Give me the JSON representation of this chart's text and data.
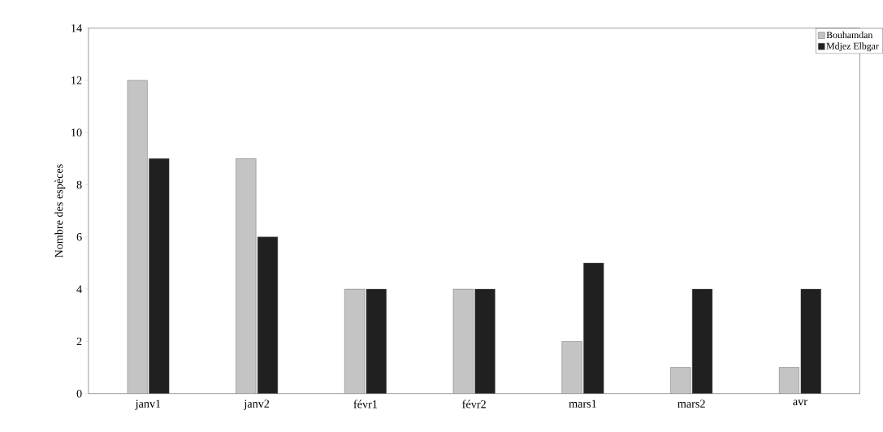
{
  "chart_data": {
    "type": "bar",
    "ylabel": "Nombre des espèces",
    "categories": [
      "janv1",
      "janv2",
      "févr1",
      "févr2",
      "mars1",
      "mars2",
      "avr"
    ],
    "series": [
      {
        "name": "Bouhamdan",
        "color": "#c4c4c4",
        "values": [
          12,
          9,
          4,
          4,
          2,
          1,
          1
        ]
      },
      {
        "name": "Mdjez Elbgar",
        "color": "#202020",
        "values": [
          9,
          6,
          4,
          4,
          5,
          4,
          4
        ]
      }
    ],
    "ylim": [
      0,
      14
    ],
    "yticks": [
      0,
      2,
      4,
      6,
      8,
      10,
      12,
      14
    ],
    "legend": "top right"
  }
}
